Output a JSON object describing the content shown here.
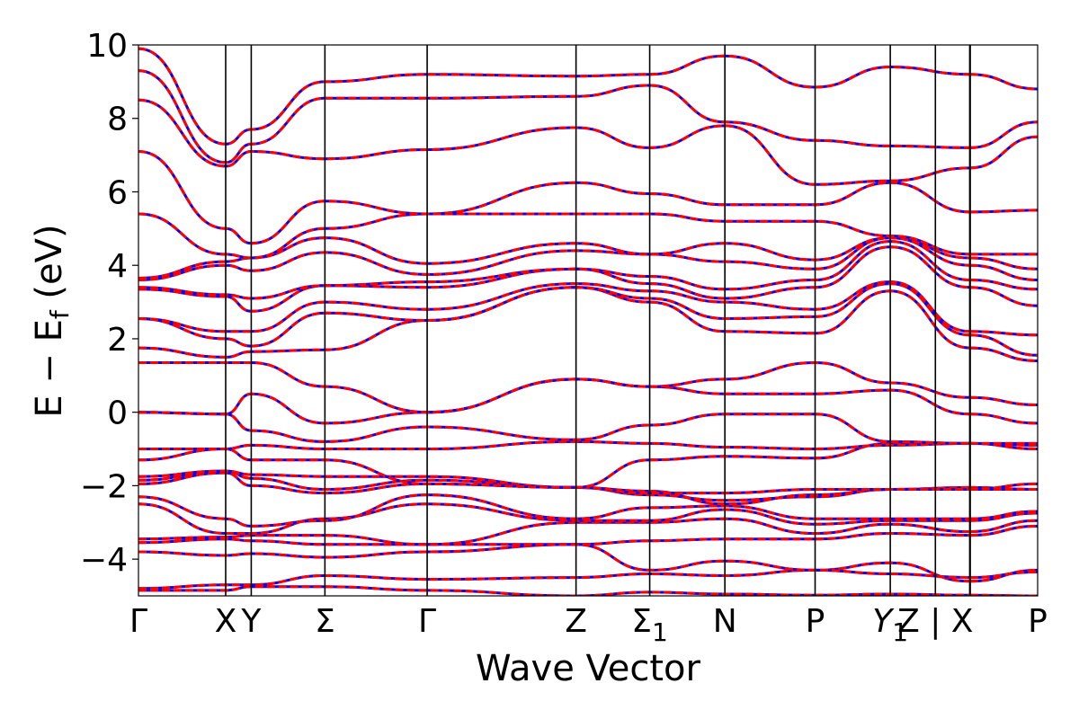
{
  "chart_data": {
    "type": "line",
    "title": "",
    "xlabel": "Wave Vector",
    "ylabel": "E − E",
    "ylabel_subscript": "f",
    "ylabel_unit": "(eV)",
    "ylim": [
      -5,
      10
    ],
    "yticks": [
      -4,
      -2,
      0,
      2,
      4,
      6,
      8,
      10
    ],
    "ytick_labels": [
      "−4",
      "−2",
      "0",
      "2",
      "4",
      "6",
      "8",
      "10"
    ],
    "xlim": [
      0,
      5.98
    ],
    "kpoints": [
      {
        "x": 0.0,
        "label": "Γ",
        "sub": ""
      },
      {
        "x": 0.58,
        "label": "X",
        "sub": ""
      },
      {
        "x": 0.75,
        "label": "Y",
        "sub": ""
      },
      {
        "x": 1.24,
        "label": "Σ",
        "sub": ""
      },
      {
        "x": 1.92,
        "label": "Γ",
        "sub": ""
      },
      {
        "x": 2.91,
        "label": "Z",
        "sub": ""
      },
      {
        "x": 3.4,
        "label": "Σ",
        "sub": "1"
      },
      {
        "x": 3.9,
        "label": "N",
        "sub": ""
      },
      {
        "x": 4.5,
        "label": "P",
        "sub": ""
      },
      {
        "x": 5.0,
        "label": "Y",
        "sub": "1",
        "italic": true
      },
      {
        "x": 5.3,
        "label": "Z | X",
        "sub": ""
      },
      {
        "x": 5.98,
        "label": "P",
        "sub": ""
      }
    ],
    "path_break_x": 5.53,
    "grid": false,
    "legend": "none",
    "colors": {
      "band_solid": "#0000ff",
      "band_dashed": "#ff0000",
      "kpoint_line": "#000000"
    },
    "x": [
      0.0,
      0.58,
      0.75,
      1.24,
      1.92,
      2.91,
      3.4,
      3.9,
      4.5,
      5.0,
      5.53,
      5.98
    ],
    "series": [
      {
        "values": [
          -4.85,
          -4.85,
          -4.75,
          -4.75,
          -4.85,
          -5.0,
          -4.9,
          -4.95,
          -4.98,
          -4.95,
          -4.98,
          -5.0
        ]
      },
      {
        "values": [
          -4.8,
          -4.7,
          -4.7,
          -4.45,
          -4.55,
          -4.5,
          -4.4,
          -4.45,
          -4.3,
          -4.1,
          -4.6,
          -4.3
        ]
      },
      {
        "values": [
          -3.8,
          -3.9,
          -3.85,
          -3.95,
          -3.8,
          -3.6,
          -4.3,
          -4.05,
          -4.3,
          -4.4,
          -4.5,
          -4.35
        ]
      },
      {
        "values": [
          -3.55,
          -3.45,
          -3.5,
          -3.6,
          -3.6,
          -3.6,
          -3.5,
          -3.45,
          -3.45,
          -3.3,
          -3.35,
          -3.1
        ]
      },
      {
        "values": [
          -3.45,
          -3.4,
          -3.35,
          -3.35,
          -3.6,
          -3.0,
          -3.0,
          -2.9,
          -3.3,
          -3.05,
          -3.25,
          -2.95
        ]
      },
      {
        "values": [
          -2.5,
          -3.3,
          -3.3,
          -2.9,
          -2.5,
          -2.95,
          -2.95,
          -2.65,
          -3.05,
          -2.95,
          -2.95,
          -2.75
        ]
      },
      {
        "values": [
          -2.3,
          -2.9,
          -3.1,
          -2.95,
          -2.25,
          -2.9,
          -2.6,
          -2.55,
          -2.9,
          -2.9,
          -2.9,
          -2.7
        ]
      },
      {
        "values": [
          -1.95,
          -1.65,
          -2.0,
          -2.2,
          -1.95,
          -2.05,
          -2.25,
          -2.4,
          -2.3,
          -2.1,
          -2.05,
          -2.1
        ]
      },
      {
        "values": [
          -1.85,
          -1.6,
          -1.8,
          -2.1,
          -1.85,
          -2.05,
          -2.15,
          -2.5,
          -2.25,
          -2.1,
          -2.1,
          -2.1
        ]
      },
      {
        "values": [
          -1.75,
          -1.6,
          -1.7,
          -1.75,
          -1.75,
          -2.05,
          -2.2,
          -2.2,
          -2.1,
          -2.1,
          -2.1,
          -1.95
        ]
      },
      {
        "values": [
          -1.3,
          -1.0,
          -1.3,
          -1.3,
          -1.95,
          -2.05,
          -1.3,
          -1.2,
          -1.25,
          -0.85,
          -0.85,
          -1.0
        ]
      },
      {
        "values": [
          -1.0,
          -1.0,
          -0.9,
          -1.0,
          -1.0,
          -0.8,
          -0.85,
          -0.95,
          -1.0,
          -0.9,
          -0.85,
          -0.9
        ]
      },
      {
        "values": [
          0.0,
          -0.05,
          -0.5,
          -0.8,
          -0.4,
          -0.75,
          -0.35,
          -0.05,
          -0.05,
          -0.8,
          -0.85,
          -0.85
        ]
      },
      {
        "values": [
          0.0,
          -0.05,
          0.5,
          -0.3,
          0.0,
          0.9,
          0.7,
          0.5,
          0.5,
          0.6,
          -0.05,
          -0.3
        ]
      },
      {
        "values": [
          1.35,
          1.35,
          1.35,
          0.7,
          0.0,
          0.9,
          0.7,
          0.9,
          1.35,
          0.8,
          0.4,
          0.2
        ]
      },
      {
        "values": [
          1.75,
          1.5,
          1.65,
          1.7,
          2.5,
          3.4,
          3.0,
          2.2,
          2.15,
          3.3,
          1.75,
          1.4
        ]
      },
      {
        "values": [
          2.55,
          2.0,
          1.8,
          2.7,
          2.5,
          3.4,
          3.1,
          2.55,
          2.6,
          3.5,
          2.1,
          1.55
        ]
      },
      {
        "values": [
          2.55,
          2.2,
          2.2,
          3.0,
          2.8,
          3.5,
          3.3,
          3.0,
          2.8,
          3.55,
          2.2,
          2.1
        ]
      },
      {
        "values": [
          3.35,
          3.15,
          2.75,
          3.45,
          3.4,
          3.9,
          3.5,
          3.1,
          3.4,
          4.5,
          3.4,
          2.9
        ]
      },
      {
        "values": [
          3.4,
          3.2,
          3.1,
          3.45,
          3.55,
          3.9,
          3.7,
          3.35,
          3.6,
          4.65,
          3.6,
          3.35
        ]
      },
      {
        "values": [
          3.6,
          4.0,
          3.85,
          4.35,
          3.75,
          4.4,
          4.3,
          4.1,
          3.9,
          4.75,
          4.0,
          3.6
        ]
      },
      {
        "values": [
          3.65,
          4.1,
          4.2,
          4.75,
          4.05,
          4.6,
          4.3,
          4.6,
          4.15,
          4.75,
          4.2,
          3.9
        ]
      },
      {
        "values": [
          5.4,
          4.3,
          4.2,
          5.0,
          5.4,
          5.4,
          5.4,
          5.2,
          5.2,
          4.8,
          4.3,
          4.3
        ]
      },
      {
        "values": [
          7.1,
          5.0,
          4.6,
          5.75,
          5.4,
          6.25,
          5.95,
          5.65,
          5.65,
          6.25,
          5.45,
          5.5
        ]
      },
      {
        "values": [
          8.5,
          6.7,
          7.1,
          6.9,
          7.15,
          7.75,
          7.2,
          7.8,
          6.2,
          6.3,
          6.65,
          7.5
        ]
      },
      {
        "values": [
          9.3,
          6.8,
          7.3,
          8.55,
          8.55,
          8.6,
          8.9,
          7.9,
          7.4,
          7.25,
          7.2,
          7.9
        ]
      },
      {
        "values": [
          9.9,
          7.3,
          7.7,
          9.0,
          9.2,
          9.15,
          9.2,
          9.7,
          8.85,
          9.4,
          9.2,
          8.8
        ]
      }
    ]
  }
}
